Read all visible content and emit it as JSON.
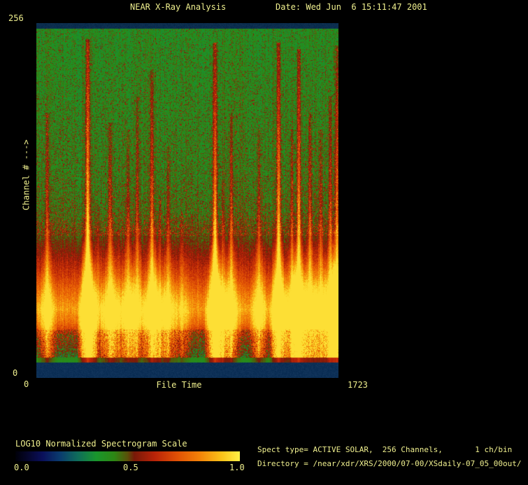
{
  "window": {
    "background": "#000000",
    "text_color": "#efef8e"
  },
  "header": {
    "title": "NEAR X-Ray Analysis",
    "date": "Date: Wed Jun  6 15:11:47 2001"
  },
  "plot": {
    "y_max": "256",
    "y_min": "0",
    "y_title": "Channel # --->",
    "x_min": "0",
    "x_title": "File Time",
    "x_max": "1723"
  },
  "colorbar": {
    "label": "LOG10 Normalized Spectrogram Scale",
    "tick_labels": [
      "0.0",
      "0.5",
      "1.0"
    ]
  },
  "info": {
    "spect_line": "Spect type= ACTIVE SOLAR,  256 Channels,       1 ch/bin",
    "directory_line": "Directory = /near/xdr/XRS/2000/07-00/XSdaily-07_05_00out/"
  },
  "chart_data": {
    "type": "heatmap",
    "title": "NEAR X-Ray Analysis spectrogram",
    "xlabel": "File Time",
    "ylabel": "Channel # --->",
    "xlim": [
      0,
      1723
    ],
    "ylim": [
      0,
      256
    ],
    "intensity_scale": {
      "label": "LOG10 Normalized Spectrogram Scale",
      "range": [
        0.0,
        1.0
      ],
      "ticks": [
        0.0,
        0.5,
        1.0
      ]
    },
    "colormap_stops": [
      [
        0.0,
        "#000008"
      ],
      [
        0.05,
        "#050528"
      ],
      [
        0.12,
        "#0a0f5a"
      ],
      [
        0.2,
        "#0a3c6e"
      ],
      [
        0.28,
        "#0f6e5a"
      ],
      [
        0.36,
        "#19962d"
      ],
      [
        0.44,
        "#2d8714"
      ],
      [
        0.5,
        "#5a5009"
      ],
      [
        0.53,
        "#781908"
      ],
      [
        0.62,
        "#b92308"
      ],
      [
        0.72,
        "#e15005"
      ],
      [
        0.82,
        "#f38208"
      ],
      [
        0.92,
        "#fac319"
      ],
      [
        1.0,
        "#fff046"
      ]
    ],
    "background_profile": [
      [
        0.0,
        0.4
      ],
      [
        0.45,
        0.42
      ],
      [
        0.55,
        0.44
      ],
      [
        0.62,
        0.5
      ],
      [
        0.68,
        0.58
      ],
      [
        0.74,
        0.68
      ],
      [
        0.8,
        0.8
      ],
      [
        0.84,
        0.87
      ],
      [
        0.88,
        0.78
      ],
      [
        0.92,
        0.62
      ],
      [
        0.96,
        0.55
      ],
      [
        0.99,
        0.48
      ],
      [
        1.0,
        0.44
      ]
    ],
    "flare_events": [
      [
        60,
        0.45,
        0.75
      ],
      [
        291,
        1.0,
        0.97
      ],
      [
        351,
        0.3,
        0.45
      ],
      [
        419,
        0.55,
        0.72
      ],
      [
        463,
        0.25,
        0.4
      ],
      [
        522,
        0.5,
        0.7
      ],
      [
        574,
        0.4,
        0.8
      ],
      [
        658,
        0.65,
        0.88
      ],
      [
        702,
        0.3,
        0.5
      ],
      [
        750,
        0.45,
        0.65
      ],
      [
        829,
        0.3,
        0.45
      ],
      [
        1017,
        0.9,
        0.96
      ],
      [
        1061,
        0.35,
        0.55
      ],
      [
        1109,
        0.5,
        0.75
      ],
      [
        1268,
        0.5,
        0.7
      ],
      [
        1380,
        0.85,
        0.96
      ],
      [
        1456,
        0.45,
        0.7
      ],
      [
        1495,
        0.8,
        0.94
      ],
      [
        1559,
        0.55,
        0.75
      ],
      [
        1619,
        0.5,
        0.7
      ],
      [
        1675,
        0.55,
        0.8
      ],
      [
        1712,
        0.7,
        0.95
      ]
    ],
    "top_band": {
      "color": "#0b2d4e",
      "height_frac": 0.016
    },
    "bottom_band": {
      "color": "#0d3057",
      "height_frac": 0.043
    },
    "noise_seed": 42
  }
}
